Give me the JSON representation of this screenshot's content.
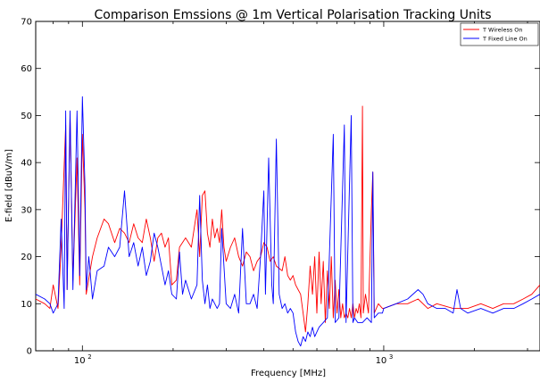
{
  "chart_data": {
    "type": "line",
    "title": "Comparison Emssions @ 1m Vertical Polarisation Tracking Units",
    "xlabel": "Frequency [MHz]",
    "ylabel": "E-field [dBuV/m]",
    "x_scale": "log",
    "xlim": [
      70,
      3300
    ],
    "ylim": [
      0,
      70
    ],
    "x_ticks": [
      {
        "value": 100,
        "base": "10",
        "exp": "2"
      },
      {
        "value": 1000,
        "base": "10",
        "exp": "3"
      }
    ],
    "y_ticks": [
      0,
      10,
      20,
      30,
      40,
      50,
      60,
      70
    ],
    "grid": false,
    "legend_position": "top-right",
    "series": [
      {
        "name": "T Wireless On",
        "color": "#ff0000",
        "points": [
          [
            70,
            11
          ],
          [
            75,
            10
          ],
          [
            78,
            9
          ],
          [
            80,
            14
          ],
          [
            83,
            9
          ],
          [
            85,
            22
          ],
          [
            88,
            48
          ],
          [
            89,
            13
          ],
          [
            91,
            50
          ],
          [
            93,
            15
          ],
          [
            96,
            41
          ],
          [
            98,
            14
          ],
          [
            100,
            46
          ],
          [
            102,
            30
          ],
          [
            103,
            12
          ],
          [
            108,
            20
          ],
          [
            112,
            24
          ],
          [
            118,
            28
          ],
          [
            122,
            27
          ],
          [
            128,
            23
          ],
          [
            133,
            26
          ],
          [
            138,
            25
          ],
          [
            143,
            23
          ],
          [
            148,
            27
          ],
          [
            153,
            24
          ],
          [
            158,
            23
          ],
          [
            163,
            28
          ],
          [
            168,
            24
          ],
          [
            173,
            19
          ],
          [
            178,
            24
          ],
          [
            183,
            25
          ],
          [
            188,
            22
          ],
          [
            193,
            24
          ],
          [
            198,
            14
          ],
          [
            205,
            15
          ],
          [
            210,
            22
          ],
          [
            220,
            24
          ],
          [
            230,
            22
          ],
          [
            240,
            30
          ],
          [
            245,
            20
          ],
          [
            250,
            33
          ],
          [
            255,
            34
          ],
          [
            260,
            25
          ],
          [
            265,
            22
          ],
          [
            270,
            28
          ],
          [
            275,
            24
          ],
          [
            280,
            26
          ],
          [
            285,
            23
          ],
          [
            290,
            30
          ],
          [
            295,
            22
          ],
          [
            300,
            19
          ],
          [
            310,
            22
          ],
          [
            320,
            24
          ],
          [
            330,
            20
          ],
          [
            340,
            18
          ],
          [
            350,
            21
          ],
          [
            360,
            20
          ],
          [
            370,
            17
          ],
          [
            380,
            19
          ],
          [
            390,
            20
          ],
          [
            400,
            23
          ],
          [
            410,
            22
          ],
          [
            420,
            19
          ],
          [
            430,
            20
          ],
          [
            440,
            18
          ],
          [
            460,
            17
          ],
          [
            470,
            20
          ],
          [
            480,
            16
          ],
          [
            490,
            15
          ],
          [
            500,
            16
          ],
          [
            510,
            14
          ],
          [
            520,
            13
          ],
          [
            530,
            12
          ],
          [
            540,
            8
          ],
          [
            550,
            4
          ],
          [
            560,
            10
          ],
          [
            570,
            18
          ],
          [
            580,
            12
          ],
          [
            590,
            20
          ],
          [
            600,
            8
          ],
          [
            610,
            21
          ],
          [
            620,
            10
          ],
          [
            630,
            19
          ],
          [
            640,
            6
          ],
          [
            650,
            17
          ],
          [
            660,
            9
          ],
          [
            670,
            20
          ],
          [
            680,
            7
          ],
          [
            690,
            15
          ],
          [
            700,
            8
          ],
          [
            710,
            13
          ],
          [
            720,
            7
          ],
          [
            730,
            10
          ],
          [
            740,
            7
          ],
          [
            750,
            8
          ],
          [
            760,
            7
          ],
          [
            770,
            9
          ],
          [
            780,
            7
          ],
          [
            790,
            10
          ],
          [
            800,
            7
          ],
          [
            810,
            9
          ],
          [
            820,
            8
          ],
          [
            830,
            10
          ],
          [
            840,
            7
          ],
          [
            850,
            52
          ],
          [
            855,
            8
          ],
          [
            870,
            12
          ],
          [
            890,
            8
          ],
          [
            910,
            30
          ],
          [
            920,
            38
          ],
          [
            930,
            8
          ],
          [
            960,
            10
          ],
          [
            990,
            9
          ],
          [
            1000,
            9
          ],
          [
            1100,
            10
          ],
          [
            1200,
            10
          ],
          [
            1300,
            11
          ],
          [
            1400,
            9
          ],
          [
            1500,
            10
          ],
          [
            1700,
            9
          ],
          [
            1900,
            9
          ],
          [
            2100,
            10
          ],
          [
            2300,
            9
          ],
          [
            2500,
            10
          ],
          [
            2700,
            10
          ],
          [
            2900,
            11
          ],
          [
            3100,
            12
          ],
          [
            3300,
            14
          ]
        ]
      },
      {
        "name": "T Fixed Line On",
        "color": "#0000ff",
        "points": [
          [
            70,
            12
          ],
          [
            75,
            11
          ],
          [
            78,
            10
          ],
          [
            80,
            8
          ],
          [
            83,
            10
          ],
          [
            85,
            28
          ],
          [
            87,
            9
          ],
          [
            88,
            51
          ],
          [
            89,
            13
          ],
          [
            91,
            51
          ],
          [
            93,
            13
          ],
          [
            96,
            51
          ],
          [
            98,
            16
          ],
          [
            100,
            54
          ],
          [
            102,
            35
          ],
          [
            103,
            13
          ],
          [
            105,
            20
          ],
          [
            108,
            11
          ],
          [
            112,
            17
          ],
          [
            118,
            18
          ],
          [
            122,
            22
          ],
          [
            128,
            20
          ],
          [
            133,
            22
          ],
          [
            138,
            34
          ],
          [
            143,
            20
          ],
          [
            148,
            23
          ],
          [
            153,
            18
          ],
          [
            158,
            22
          ],
          [
            163,
            16
          ],
          [
            168,
            19
          ],
          [
            173,
            25
          ],
          [
            178,
            22
          ],
          [
            183,
            18
          ],
          [
            188,
            14
          ],
          [
            193,
            17
          ],
          [
            198,
            12
          ],
          [
            205,
            11
          ],
          [
            210,
            21
          ],
          [
            215,
            12
          ],
          [
            220,
            15
          ],
          [
            230,
            11
          ],
          [
            240,
            14
          ],
          [
            245,
            33
          ],
          [
            250,
            15
          ],
          [
            255,
            10
          ],
          [
            260,
            14
          ],
          [
            265,
            9
          ],
          [
            270,
            11
          ],
          [
            275,
            10
          ],
          [
            280,
            9
          ],
          [
            285,
            10
          ],
          [
            290,
            26
          ],
          [
            300,
            10
          ],
          [
            310,
            9
          ],
          [
            320,
            12
          ],
          [
            330,
            8
          ],
          [
            340,
            26
          ],
          [
            350,
            10
          ],
          [
            360,
            10
          ],
          [
            370,
            12
          ],
          [
            380,
            9
          ],
          [
            390,
            20
          ],
          [
            400,
            34
          ],
          [
            405,
            12
          ],
          [
            415,
            41
          ],
          [
            425,
            14
          ],
          [
            430,
            10
          ],
          [
            440,
            45
          ],
          [
            450,
            12
          ],
          [
            460,
            9
          ],
          [
            470,
            10
          ],
          [
            480,
            8
          ],
          [
            490,
            9
          ],
          [
            500,
            8
          ],
          [
            510,
            4
          ],
          [
            520,
            2
          ],
          [
            530,
            1
          ],
          [
            540,
            3
          ],
          [
            550,
            2
          ],
          [
            560,
            4
          ],
          [
            570,
            3
          ],
          [
            580,
            5
          ],
          [
            590,
            3
          ],
          [
            600,
            4
          ],
          [
            610,
            5
          ],
          [
            630,
            6
          ],
          [
            650,
            7
          ],
          [
            680,
            46
          ],
          [
            690,
            6
          ],
          [
            710,
            7
          ],
          [
            740,
            48
          ],
          [
            750,
            6
          ],
          [
            780,
            50
          ],
          [
            790,
            6
          ],
          [
            800,
            7
          ],
          [
            820,
            6
          ],
          [
            850,
            6
          ],
          [
            880,
            7
          ],
          [
            910,
            6
          ],
          [
            920,
            38
          ],
          [
            930,
            7
          ],
          [
            960,
            8
          ],
          [
            990,
            8
          ],
          [
            1000,
            9
          ],
          [
            1100,
            10
          ],
          [
            1200,
            11
          ],
          [
            1300,
            13
          ],
          [
            1350,
            12
          ],
          [
            1400,
            10
          ],
          [
            1500,
            9
          ],
          [
            1600,
            9
          ],
          [
            1700,
            8
          ],
          [
            1750,
            13
          ],
          [
            1800,
            9
          ],
          [
            1900,
            8
          ],
          [
            2100,
            9
          ],
          [
            2300,
            8
          ],
          [
            2500,
            9
          ],
          [
            2700,
            9
          ],
          [
            2900,
            10
          ],
          [
            3100,
            11
          ],
          [
            3300,
            12
          ]
        ]
      }
    ]
  }
}
